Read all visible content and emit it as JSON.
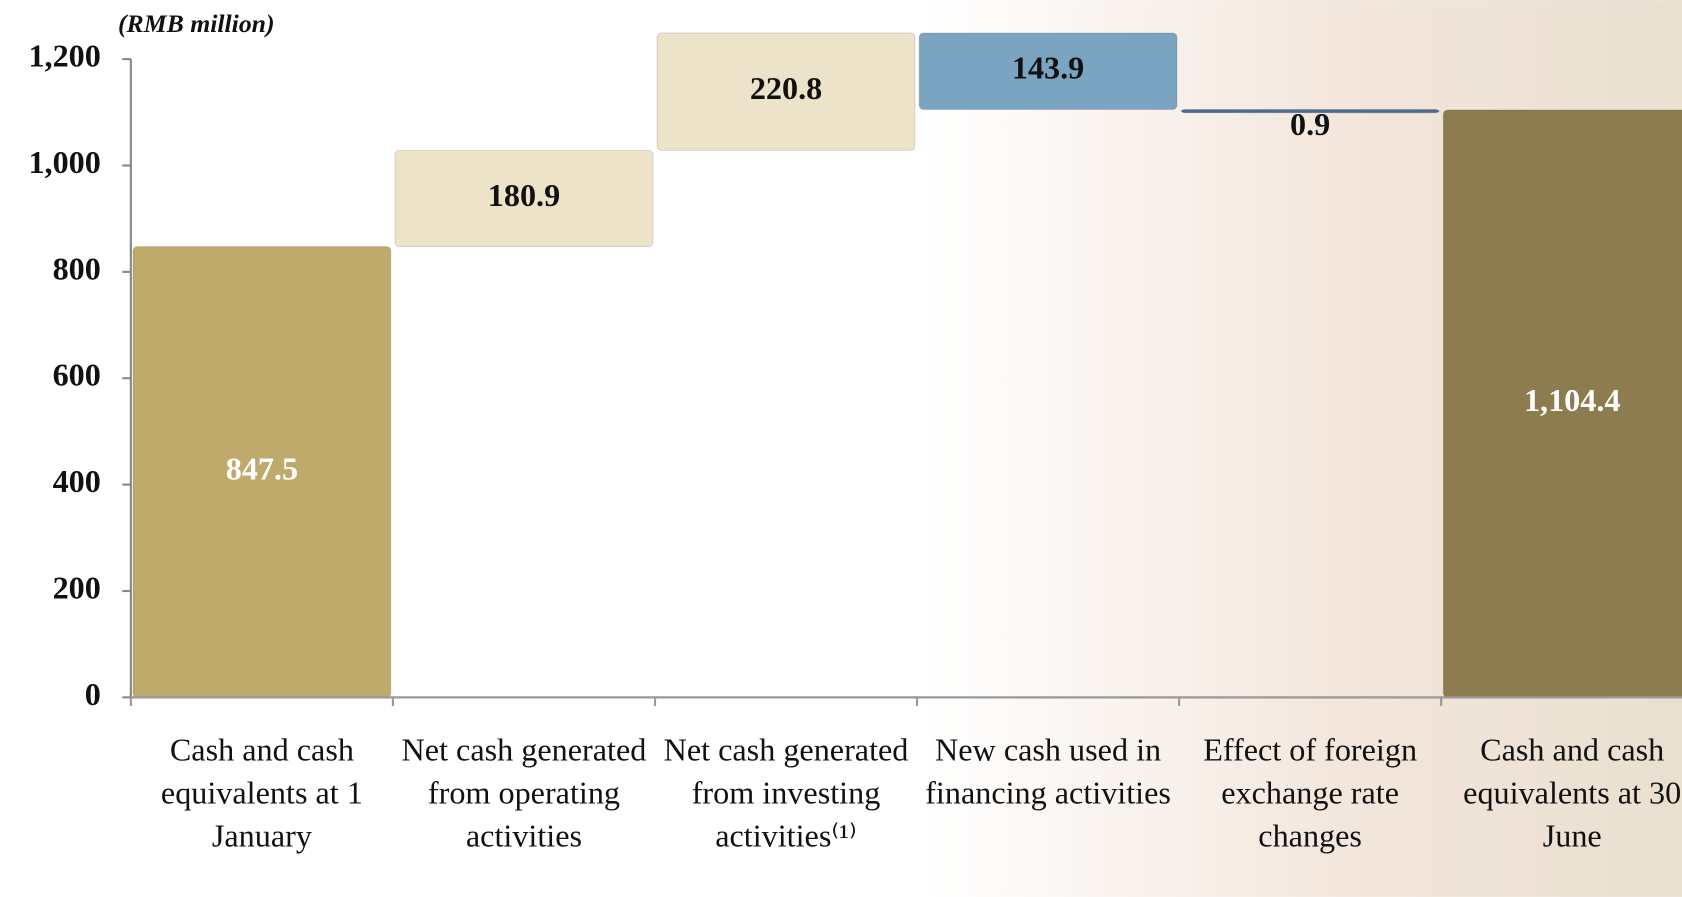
{
  "chart_data": {
    "type": "waterfall",
    "ylabel": "(RMB  million)",
    "categories": [
      "Cash and cash equivalents at 1 January",
      "Net cash generated from operating activities",
      "Net cash generated from investing activities⁽¹⁾",
      "New cash used in financing activities",
      "Effect of foreign exchange rate changes",
      "Cash and cash equivalents at 30 June"
    ],
    "values": [
      847.5,
      180.9,
      220.8,
      -143.9,
      -0.9,
      1104.4
    ],
    "value_labels": [
      "847.5",
      "180.9",
      "220.8",
      "143.9",
      "0.9",
      "1,104.4"
    ],
    "colors": [
      "#bfa96b",
      "#ede3c9",
      "#ede3c9",
      "#7ba4c0",
      "#4c6a96",
      "#8d7c4f"
    ],
    "label_colors": [
      "#ffffff",
      "#111111",
      "#111111",
      "#111111",
      "#111111",
      "#ffffff"
    ],
    "ylim": [
      0,
      1200
    ],
    "yticks": [
      0,
      200,
      400,
      600,
      800,
      {
        "value": 1000,
        "label": "1,000"
      },
      {
        "value": 1200,
        "label": "1,200"
      }
    ]
  }
}
